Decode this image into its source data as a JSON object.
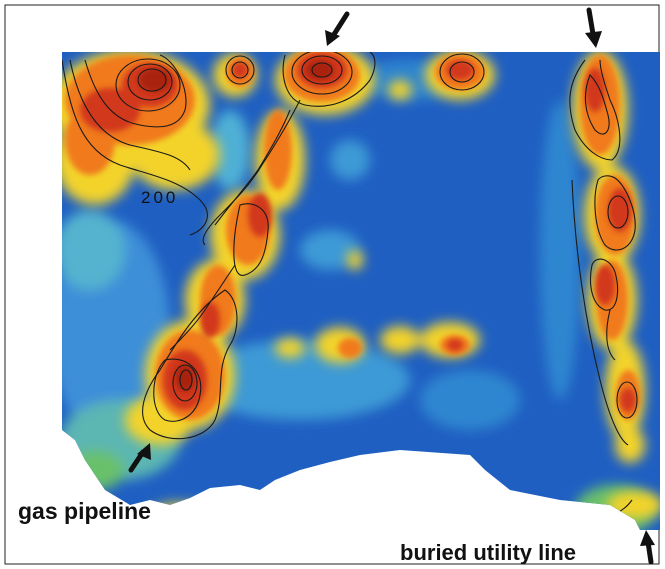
{
  "labels": {
    "gas_pipeline": "gas pipeline",
    "buried_utility_line": "buried utility line",
    "contour_value": "200"
  },
  "arrows": [
    {
      "name": "arrow-top-left-icon",
      "direction": "down-left"
    },
    {
      "name": "arrow-top-right-icon",
      "direction": "down"
    },
    {
      "name": "arrow-gas-pipeline-icon",
      "direction": "up-right"
    },
    {
      "name": "arrow-utility-line-icon",
      "direction": "up"
    }
  ],
  "colors": {
    "background": "#1f5fc2",
    "deep_blue": "#1a4fb8",
    "cyan": "#3fb7d6",
    "green": "#69c06a",
    "yellow": "#f3d32a",
    "orange": "#f07a1e",
    "red": "#d2381d",
    "contour": "#1a1a1a"
  }
}
